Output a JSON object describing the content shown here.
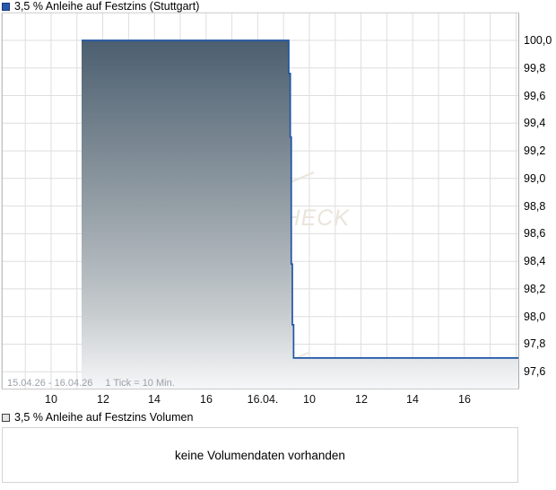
{
  "panel1": {
    "legend_label": "3,5 % Anleihe auf Festzins (Stuttgart)",
    "footer_range": "15.04.26 - 16.04.26",
    "footer_tick": "1 Tick = 10 Min.",
    "watermark": "CHARTCHECK"
  },
  "panel2": {
    "legend_label": "3,5 % Anleihe auf Festzins Volumen",
    "message": "keine Volumendaten vorhanden"
  },
  "colors": {
    "line": "#1f55a5",
    "legend_square": "#2957ac",
    "gridline": "#dedede",
    "border": "#c2c2c2",
    "fill_top": "#4c5f70",
    "fill_mid": "#98a2a9",
    "fill_low": "#c6cbce",
    "fill_bottom": "#f6f7f8",
    "watermark": "#eae4db",
    "footer_text": "#9aa1a9"
  },
  "chart_data": {
    "type": "area",
    "title": "3,5 % Anleihe auf Festzins (Stuttgart)",
    "period": "15.04.26 - 16.04.26",
    "tick_interval": "1 Tick = 10 Min.",
    "t_unit": "hours since 15.04.26 08:00",
    "ylim": [
      97.5,
      100.2
    ],
    "y_step": 0.2,
    "grid": true,
    "y_ticks": [
      "100,0",
      "99,8",
      "99,6",
      "99,4",
      "99,2",
      "99,0",
      "98,8",
      "98,6",
      "98,4",
      "98,2",
      "98,0",
      "97,8",
      "97,6"
    ],
    "y_tick_values": [
      100.0,
      99.8,
      99.6,
      99.4,
      99.2,
      99.0,
      98.8,
      98.6,
      98.4,
      98.2,
      98.0,
      97.8,
      97.6
    ],
    "x_ticks": [
      {
        "label": "10",
        "t": 2
      },
      {
        "label": "12",
        "t": 4
      },
      {
        "label": "14",
        "t": 6
      },
      {
        "label": "16",
        "t": 8
      },
      {
        "label": "16.04.",
        "t": 10.2
      },
      {
        "label": "10",
        "t": 12
      },
      {
        "label": "12",
        "t": 14
      },
      {
        "label": "14",
        "t": 16
      },
      {
        "label": "16",
        "t": 18
      }
    ],
    "series": [
      {
        "name": "3,5 % Anleihe auf Festzins",
        "style": "step-area",
        "points": [
          {
            "t": 3.18,
            "v": 100.0
          },
          {
            "t": 11.2,
            "v": 99.76
          },
          {
            "t": 11.26,
            "v": 99.3
          },
          {
            "t": 11.3,
            "v": 98.38
          },
          {
            "t": 11.34,
            "v": 97.94
          },
          {
            "t": 11.39,
            "v": 97.7
          },
          {
            "t": 20.1,
            "v": 97.7
          }
        ]
      }
    ],
    "volume_message": "keine Volumendaten vorhanden"
  }
}
